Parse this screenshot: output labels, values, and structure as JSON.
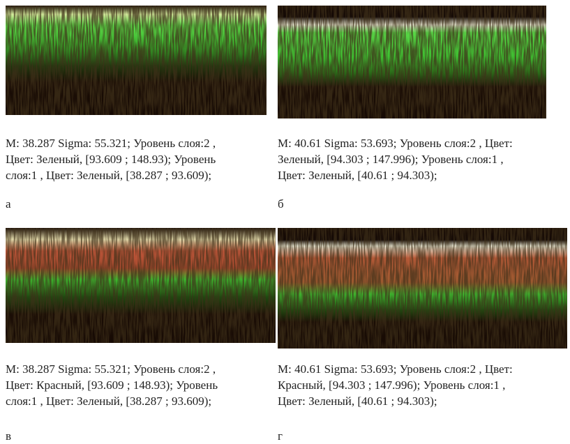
{
  "panels": [
    {
      "caption": [
        "M: 38.287 Sigma: 55.321; Уровень слоя:2 ,",
        "Цвет: Зеленый, [93.609 ; 148.93); Уровень",
        "слоя:1 , Цвет: Зеленый, [38.287 ; 93.609);"
      ],
      "label": "а"
    },
    {
      "caption": [
        "M: 40.61 Sigma: 53.693; Уровень слоя:2 , Цвет:",
        "Зеленый, [94.303 ; 147.996); Уровень слоя:1 ,",
        "Цвет: Зеленый, [40.61 ; 94.303);"
      ],
      "label": "б"
    },
    {
      "caption": [
        "M: 38.287 Sigma: 55.321; Уровень слоя:2 ,",
        "Цвет: Красный, [93.609 ; 148.93); Уровень",
        "слоя:1 , Цвет: Зеленый, [38.287 ; 93.609);"
      ],
      "label": "в"
    },
    {
      "caption": [
        "M: 40.61 Sigma: 53.693; Уровень слоя:2 , Цвет:",
        "Красный, [94.303 ; 147.996); Уровень слоя:1 ,",
        "Цвет: Зеленый, [40.61 ; 94.303);"
      ],
      "label": "г"
    }
  ]
}
